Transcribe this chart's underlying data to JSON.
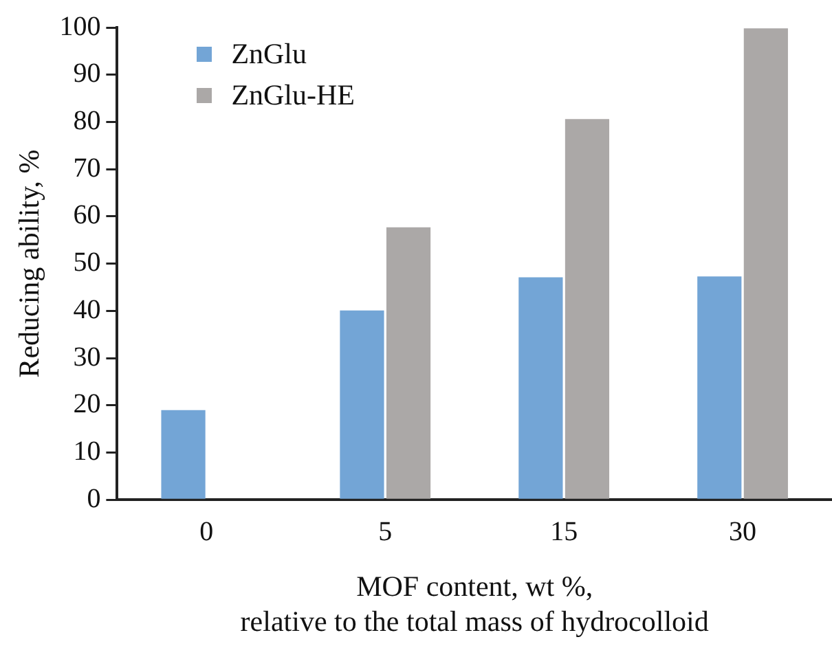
{
  "chart_data": {
    "type": "bar",
    "xlabel": "MOF content, wt %,\nrelative to the total mass of hydrocolloid",
    "ylabel": "Reducing ability, %",
    "categories": [
      "0",
      "5",
      "15",
      "30"
    ],
    "series": [
      {
        "name": "ZnGlu",
        "color": "#73a5d6",
        "values": [
          19.0,
          40.1,
          47.1,
          47.3
        ]
      },
      {
        "name": "ZnGlu-HE",
        "color": "#aba8a7",
        "values": [
          null,
          57.7,
          80.6,
          99.8
        ]
      }
    ],
    "ylim": [
      0,
      100
    ],
    "yticks": [
      0,
      10,
      20,
      30,
      40,
      50,
      60,
      70,
      80,
      90,
      100
    ],
    "grid": false,
    "legend": "top left"
  }
}
